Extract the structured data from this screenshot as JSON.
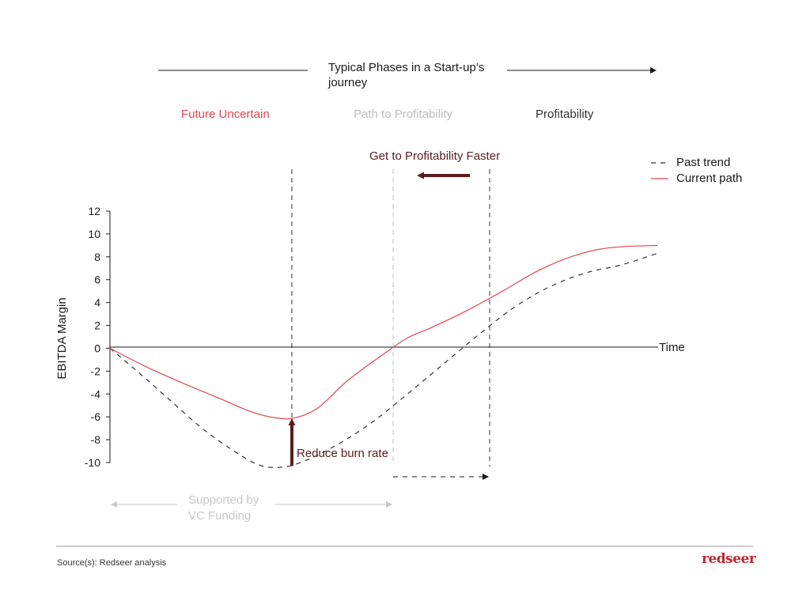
{
  "header": {
    "title": "Typical Phases in a Start-up’s journey"
  },
  "phases": [
    {
      "label": "Future Uncertain",
      "color": "#e0474c"
    },
    {
      "label": "Path to Profitability",
      "color": "#bdbdbd"
    },
    {
      "label": "Profitability",
      "color": "#333333"
    }
  ],
  "legend": {
    "past": "Past trend",
    "current": "Current path"
  },
  "annotations": {
    "faster": "Get to Profitability Faster",
    "burn": "Reduce burn rate",
    "funding": "Supported by VC Funding"
  },
  "footer": {
    "source": "Source(s): Redseer analysis",
    "brand": "redseer"
  },
  "colors": {
    "current": "#e0474c",
    "past": "#333333",
    "arrow_dark": "#5a1d1d",
    "muted": "#c8c8c8"
  },
  "chart_data": {
    "type": "line",
    "xlabel": "Time",
    "ylabel": "EBITDA Margin",
    "ylim": [
      -10,
      12
    ],
    "yticks": [
      12,
      10,
      8,
      6,
      4,
      2,
      0,
      -2,
      -4,
      -6,
      -8,
      -10
    ],
    "x_numeric_labels": false,
    "grid": false,
    "legend_position": "top-right",
    "series": [
      {
        "name": "Past trend",
        "style": "dashed",
        "points": [
          [
            0,
            0
          ],
          [
            5,
            -2.2
          ],
          [
            10,
            -4.5
          ],
          [
            15,
            -6.8
          ],
          [
            20,
            -8.7
          ],
          [
            25,
            -10.2
          ],
          [
            29,
            -10.4
          ],
          [
            33,
            -9.8
          ],
          [
            38,
            -8.5
          ],
          [
            44,
            -6.5
          ],
          [
            50,
            -4
          ],
          [
            56,
            -1.4
          ],
          [
            62,
            1.2
          ],
          [
            68,
            3.6
          ],
          [
            74,
            5.4
          ],
          [
            80,
            6.6
          ],
          [
            86,
            7.3
          ],
          [
            92,
            8.3
          ]
        ]
      },
      {
        "name": "Current path",
        "style": "solid",
        "points": [
          [
            0,
            0
          ],
          [
            6,
            -1.6
          ],
          [
            12,
            -3
          ],
          [
            18,
            -4.3
          ],
          [
            24,
            -5.6
          ],
          [
            28,
            -6.1
          ],
          [
            31,
            -6.1
          ],
          [
            35,
            -5.2
          ],
          [
            40,
            -2.8
          ],
          [
            46,
            -0.5
          ],
          [
            50,
            0.9
          ],
          [
            54,
            1.8
          ],
          [
            60,
            3.3
          ],
          [
            66,
            5
          ],
          [
            72,
            6.8
          ],
          [
            78,
            8.1
          ],
          [
            84,
            8.8
          ],
          [
            92,
            9
          ]
        ]
      }
    ]
  }
}
